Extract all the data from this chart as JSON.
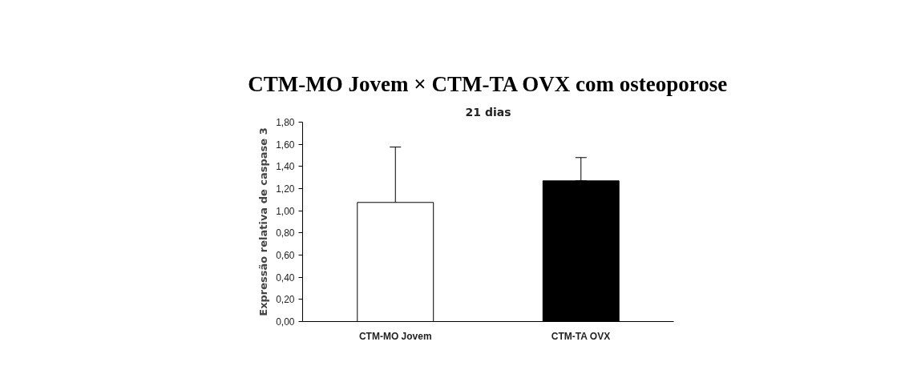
{
  "chart_data": {
    "type": "bar",
    "title": "CTM-MO Jovem × CTM-TA OVX com osteoporose",
    "subtitle": "21 dias",
    "ylabel": "Expressão relativa de caspase 3",
    "categories": [
      "CTM-MO Jovem",
      "CTM-TA OVX"
    ],
    "values": [
      1.075,
      1.27
    ],
    "colors": [
      "#ffffff",
      "#000000"
    ],
    "errors": [
      0.5,
      [
        1.27,
        1.48
      ]
    ],
    "ylim": [
      0,
      1.8
    ],
    "yticks": [
      {
        "value": 0,
        "label": "0,00"
      },
      {
        "value": 0.2,
        "label": "0,20"
      },
      {
        "value": 0.4,
        "label": "0,40"
      },
      {
        "value": 0.6,
        "label": "0,60"
      },
      {
        "value": 0.8,
        "label": "0,80"
      },
      {
        "value": 1.0,
        "label": "1,00"
      },
      {
        "value": 1.2,
        "label": "1,20"
      },
      {
        "value": 1.4,
        "label": "1,40"
      },
      {
        "value": 1.6,
        "label": "1,60"
      },
      {
        "value": 1.8,
        "label": "1,80"
      }
    ],
    "grid": false
  }
}
